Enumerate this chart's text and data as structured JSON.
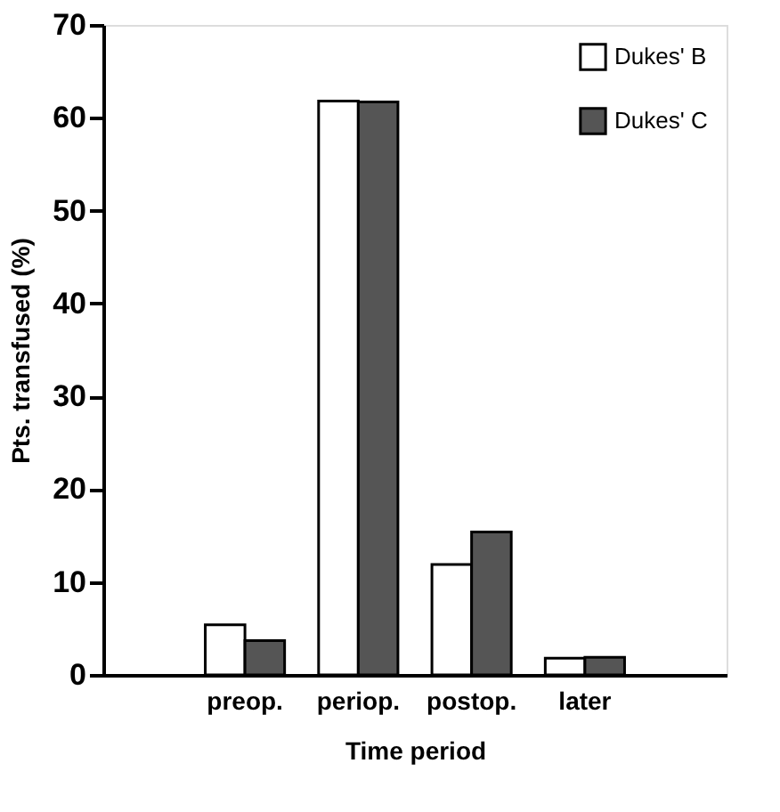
{
  "chart_data": {
    "type": "bar",
    "xlabel": "Time period",
    "ylabel": "Pts. transfused (%)",
    "categories": [
      "preop.",
      "periop.",
      "postop.",
      "later"
    ],
    "series": [
      {
        "name": "Dukes' B",
        "color": "#ffffff",
        "values": [
          5.4,
          61.8,
          11.9,
          1.8
        ]
      },
      {
        "name": "Dukes' C",
        "color": "#555555",
        "values": [
          3.7,
          61.7,
          15.4,
          1.9
        ]
      }
    ],
    "ylim": [
      0,
      70
    ],
    "yticks": [
      0,
      10,
      20,
      30,
      40,
      50,
      60,
      70
    ],
    "grid": false,
    "legend": "top right"
  }
}
